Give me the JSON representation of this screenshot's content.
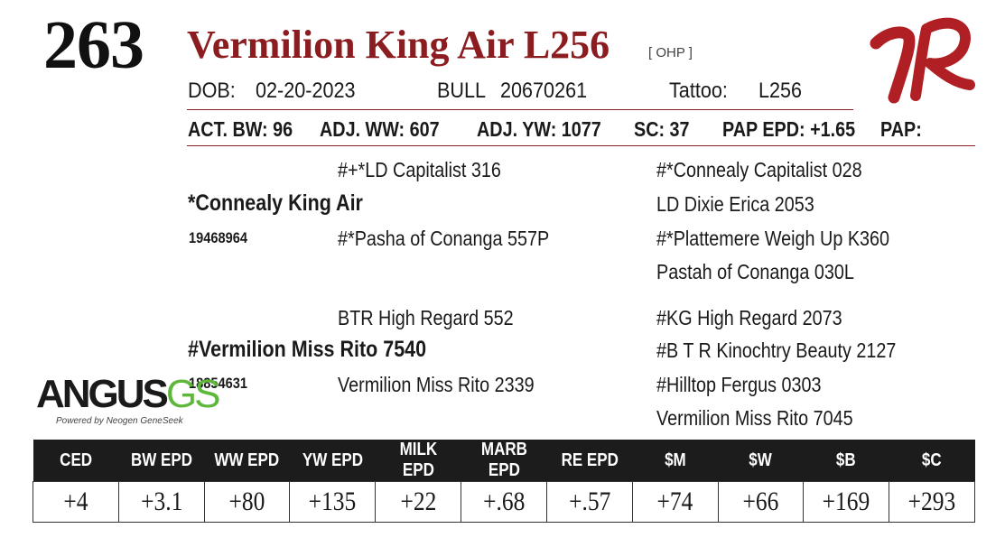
{
  "lot_number": "263",
  "name": "Vermilion King Air L256",
  "ohp": "[ OHP ]",
  "dob_label": "DOB:",
  "dob": "02-20-2023",
  "sex": "BULL",
  "reg_number": "20670261",
  "tattoo_label": "Tattoo:",
  "tattoo": "L256",
  "stats": {
    "act_bw": "ACT. BW: 96",
    "adj_ww": "ADJ. WW: 607",
    "adj_yw": "ADJ. YW: 1077",
    "sc": "SC: 37",
    "pap_epd": "PAP EPD: +1.65",
    "pap": "PAP:"
  },
  "pedigree": {
    "sire": "*Connealy King Air",
    "sire_reg": "19468964",
    "sire_sire": "#+*LD Capitalist 316",
    "sire_dam": "#*Pasha of Conanga 557P",
    "sss": "#*Connealy Capitalist 028",
    "ssd": "LD Dixie Erica 2053",
    "sds": "#*Plattemere Weigh Up K360",
    "sdd": "Pastah of Conanga 030L",
    "dam": "#Vermilion Miss Rito 7540",
    "dam_reg": "18854631",
    "dam_sire": "BTR High Regard 552",
    "dam_dam": "Vermilion Miss Rito 2339",
    "dss": "#KG High Regard 2073",
    "dsd": "#B T R Kinochtry Beauty 2127",
    "dds": "#Hilltop Fergus 0303",
    "ddd": "Vermilion Miss Rito 7045"
  },
  "angus_logo": {
    "word_a": "ANGUS",
    "word_g": "GS",
    "sub": "Powered by Neogen GeneSeek"
  },
  "epd_table": {
    "headers": [
      "CED",
      "BW EPD",
      "WW EPD",
      "YW EPD",
      "MILK EPD",
      "MARB EPD",
      "RE EPD",
      "$M",
      "$W",
      "$B",
      "$C"
    ],
    "values": [
      "+4",
      "+3.1",
      "+80",
      "+135",
      "+22",
      "+.68",
      "+.57",
      "+74",
      "+66",
      "+169",
      "+293"
    ]
  },
  "colors": {
    "accent": "#8b1c1f",
    "header_bg": "#1c1c1c",
    "genomic_green": "#5db83a"
  }
}
